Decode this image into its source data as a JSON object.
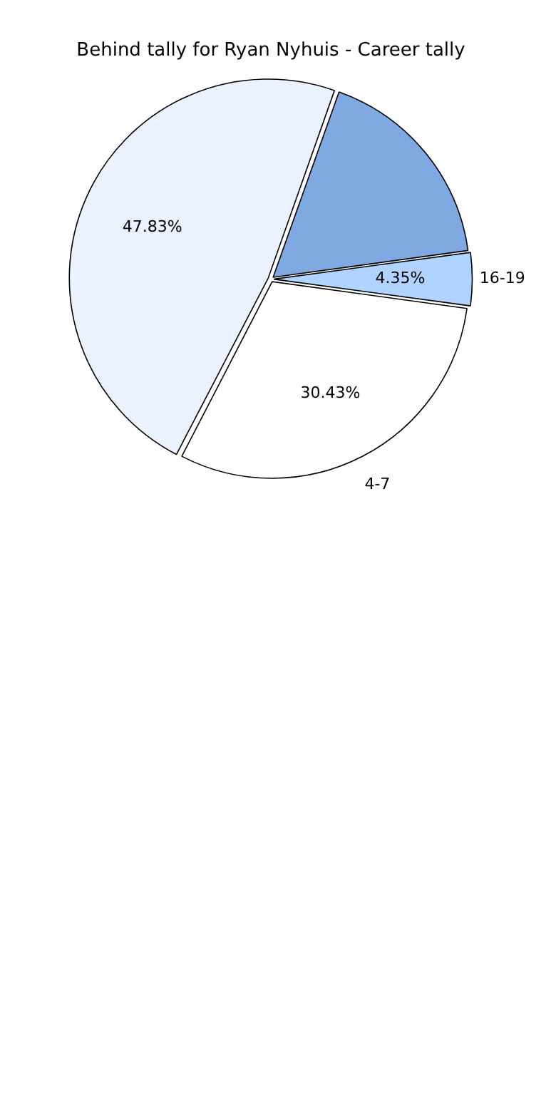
{
  "chart_data": {
    "type": "pie",
    "title": "Behind tally for Ryan Nyhuis - Career tally",
    "categories": [
      "4-7",
      null,
      null,
      "16-19"
    ],
    "values": [
      30.43,
      47.83,
      17.39,
      4.35
    ],
    "value_labels": [
      "30.43%",
      "47.83%",
      null,
      "4.35%"
    ],
    "colors": [
      "#ffffff",
      "#eaf2ff",
      "#7fa9e0",
      "#b0d4ff"
    ],
    "legend": false
  }
}
